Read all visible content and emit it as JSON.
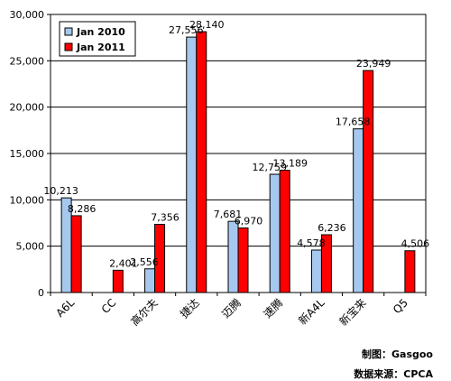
{
  "chart_data": {
    "type": "bar",
    "categories": [
      "A6L",
      "CC",
      "高尔夫",
      "捷达",
      "迈腾",
      "速腾",
      "新A4L",
      "新宝来",
      "Q5"
    ],
    "series": [
      {
        "name": "Jan 2010",
        "color": "#a6c8ef",
        "values": [
          10213,
          null,
          2556,
          27556,
          7681,
          12759,
          4578,
          17658,
          null
        ],
        "labels": [
          "10,213",
          "",
          "2,556",
          "27,556",
          "7,681",
          "12,759",
          "4,578",
          "17,658",
          ""
        ]
      },
      {
        "name": "Jan 2011",
        "color": "#ff0000",
        "values": [
          8286,
          2401,
          7356,
          28140,
          6970,
          13189,
          6236,
          23949,
          4506
        ],
        "labels": [
          "8,286",
          "2,401",
          "7,356",
          "28,140",
          "6,970",
          "13,189",
          "6,236",
          "23,949",
          "4,506"
        ]
      }
    ],
    "ylim": [
      0,
      30000
    ],
    "yticks": [
      0,
      5000,
      10000,
      15000,
      20000,
      25000,
      30000
    ],
    "ytick_labels": [
      "0",
      "5,000",
      "10,000",
      "15,000",
      "20,000",
      "25,000",
      "30,000"
    ],
    "grid": true,
    "legend_position": "top-left"
  },
  "credits": {
    "chart_by": "制图：Gasgoo",
    "source": "数据来源：CPCA"
  }
}
